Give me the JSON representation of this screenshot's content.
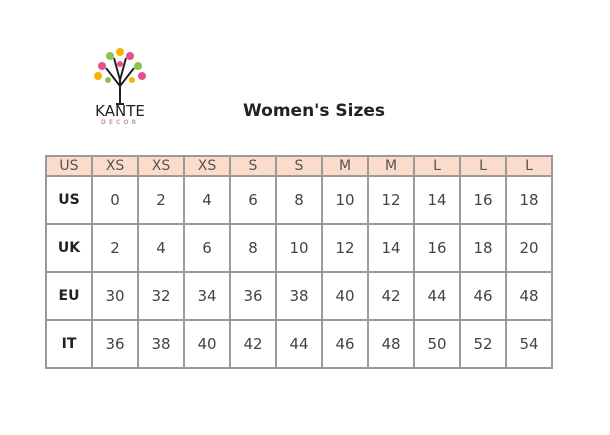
{
  "logo": {
    "line1": "KANTE",
    "line2": "DECOR"
  },
  "title": "Women's  Sizes",
  "header": [
    "US",
    "XS",
    "XS",
    "XS",
    "S",
    "S",
    "M",
    "M",
    "L",
    "L",
    "L"
  ],
  "rows": [
    {
      "label": "US",
      "values": [
        "0",
        "2",
        "4",
        "6",
        "8",
        "10",
        "12",
        "14",
        "16",
        "18"
      ]
    },
    {
      "label": "UK",
      "values": [
        "2",
        "4",
        "6",
        "8",
        "10",
        "12",
        "14",
        "16",
        "18",
        "20"
      ]
    },
    {
      "label": "EU",
      "values": [
        "30",
        "32",
        "34",
        "36",
        "38",
        "40",
        "42",
        "44",
        "46",
        "48"
      ]
    },
    {
      "label": "IT",
      "values": [
        "36",
        "38",
        "40",
        "42",
        "44",
        "46",
        "48",
        "50",
        "52",
        "54"
      ]
    }
  ],
  "colors": {
    "header_bg": "#fbdccb",
    "border": "#9a9a9a"
  }
}
